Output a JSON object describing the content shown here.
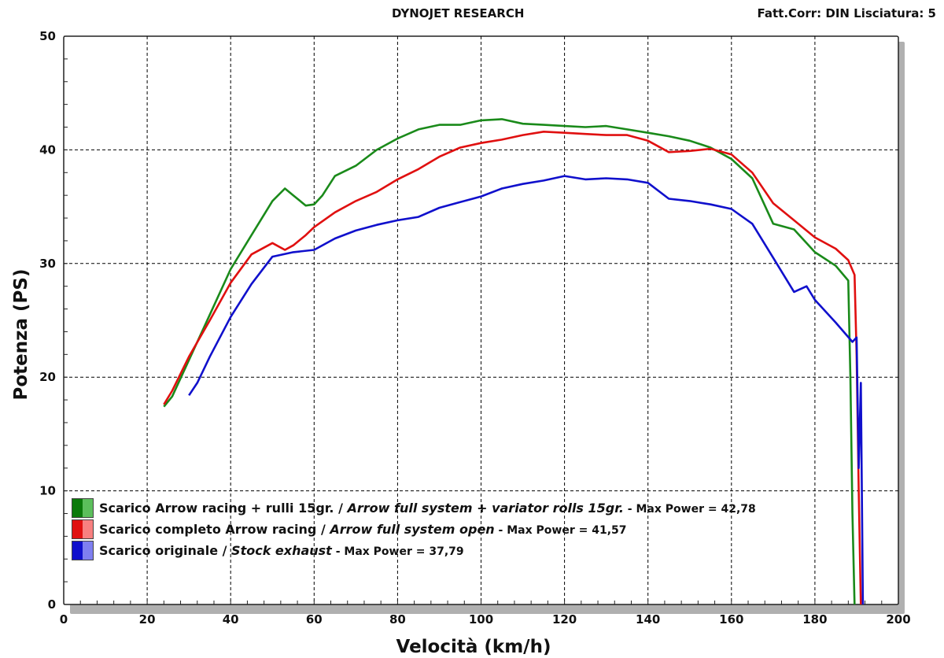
{
  "header": {
    "center": "DYNOJET RESEARCH",
    "right": "Fatt.Corr: DIN  Lisciatura: 5"
  },
  "legend": [
    {
      "name_it": "Scarico Arrow racing + rulli 15gr.",
      "sep": " / ",
      "name_en": "Arrow full system + variator rolls 15gr.",
      "max_label": " - Max Power = 42,78",
      "color_dark": "#0b7a0b",
      "color_light": "#5cbf5c"
    },
    {
      "name_it": "Scarico completo Arrow racing",
      "sep": " / ",
      "name_en": "Arrow full system open",
      "max_label": " - Max Power = 41,57",
      "color_dark": "#e01010",
      "color_light": "#f88080"
    },
    {
      "name_it": "Scarico originale",
      "sep": " / ",
      "name_en": "Stock exhaust",
      "max_label": " - Max Power = 37,79",
      "color_dark": "#1010cc",
      "color_light": "#7f7ff0"
    }
  ],
  "chart_data": {
    "type": "line",
    "xlabel": "Velocità (km/h)",
    "ylabel": "Potenza (PS)",
    "xlim": [
      0,
      200
    ],
    "ylim": [
      0,
      50
    ],
    "x_ticks": [
      0,
      20,
      40,
      60,
      80,
      100,
      120,
      140,
      160,
      180,
      200
    ],
    "y_ticks": [
      0,
      10,
      20,
      30,
      40,
      50
    ],
    "grid": true,
    "legend_position": "bottom-left",
    "series": [
      {
        "name": "Scarico Arrow racing + rulli 15gr. / Arrow full system + variator rolls 15gr.",
        "color": "#1a8a1a",
        "max_power": 42.78,
        "x": [
          24,
          26,
          30,
          35,
          40,
          45,
          50,
          53,
          55,
          58,
          60,
          62,
          65,
          70,
          75,
          80,
          85,
          90,
          95,
          100,
          105,
          110,
          115,
          120,
          125,
          130,
          135,
          140,
          145,
          150,
          155,
          160,
          165,
          170,
          175,
          180,
          185,
          188,
          188.5,
          189,
          189.5
        ],
        "y": [
          17.4,
          18.3,
          21.5,
          25.5,
          29.5,
          32.5,
          35.5,
          36.6,
          36.0,
          35.1,
          35.2,
          36.0,
          37.7,
          38.6,
          40.0,
          41.0,
          41.8,
          42.2,
          42.2,
          42.6,
          42.7,
          42.3,
          42.2,
          42.1,
          42.0,
          42.1,
          41.8,
          41.5,
          41.2,
          40.8,
          40.2,
          39.2,
          37.5,
          33.5,
          33.0,
          31.0,
          29.8,
          28.5,
          20.0,
          8.0,
          0.0
        ]
      },
      {
        "name": "Scarico completo Arrow racing / Arrow full system open",
        "color": "#e01010",
        "max_power": 41.57,
        "x": [
          24,
          26,
          30,
          35,
          40,
          45,
          50,
          53,
          55,
          58,
          60,
          65,
          70,
          75,
          80,
          85,
          90,
          95,
          100,
          105,
          110,
          115,
          120,
          125,
          130,
          135,
          140,
          145,
          150,
          155,
          160,
          165,
          170,
          175,
          180,
          185,
          188,
          189.5,
          190,
          190.5,
          191
        ],
        "y": [
          17.6,
          18.8,
          21.8,
          25.0,
          28.3,
          30.8,
          31.8,
          31.2,
          31.6,
          32.5,
          33.2,
          34.5,
          35.5,
          36.3,
          37.4,
          38.3,
          39.4,
          40.2,
          40.6,
          40.9,
          41.3,
          41.6,
          41.5,
          41.4,
          41.3,
          41.3,
          40.8,
          39.8,
          39.9,
          40.1,
          39.6,
          38.0,
          35.3,
          33.8,
          32.3,
          31.3,
          30.3,
          29.0,
          22.0,
          10.0,
          0.0
        ]
      },
      {
        "name": "Scarico originale / Stock exhaust",
        "color": "#1010cc",
        "max_power": 37.79,
        "x": [
          30,
          32,
          35,
          40,
          45,
          50,
          55,
          60,
          65,
          70,
          75,
          80,
          85,
          90,
          95,
          100,
          105,
          110,
          115,
          120,
          125,
          130,
          135,
          140,
          145,
          150,
          155,
          160,
          165,
          170,
          175,
          178,
          180,
          185,
          189,
          190,
          190.5,
          191,
          191.5
        ],
        "y": [
          18.4,
          19.5,
          21.8,
          25.3,
          28.2,
          30.6,
          31.0,
          31.2,
          32.2,
          32.9,
          33.4,
          33.8,
          34.1,
          34.9,
          35.4,
          35.9,
          36.6,
          37.0,
          37.3,
          37.7,
          37.4,
          37.5,
          37.4,
          37.1,
          35.7,
          35.5,
          35.2,
          34.8,
          33.5,
          30.5,
          27.5,
          28.0,
          26.8,
          24.8,
          23.1,
          23.5,
          12.0,
          19.5,
          0.0
        ]
      }
    ]
  }
}
